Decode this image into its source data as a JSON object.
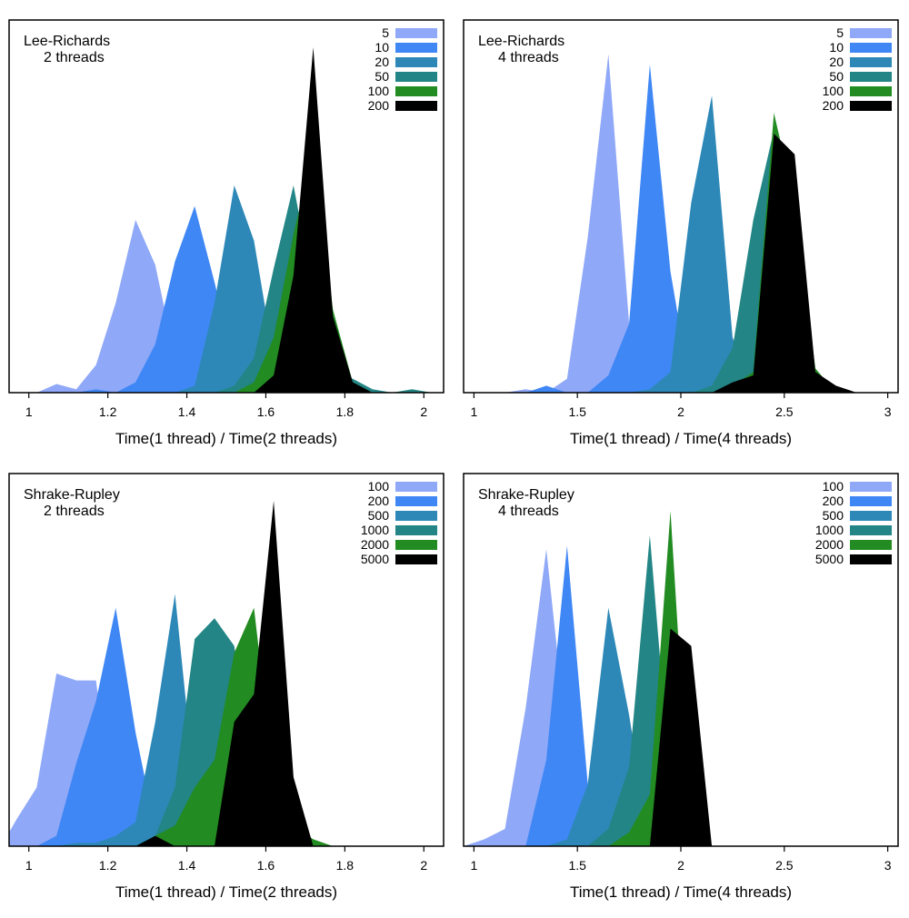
{
  "chart_data": [
    {
      "type": "area",
      "title_line1": "Lee-Richards",
      "title_line2": "2 threads",
      "xlabel": "Time(1 thread) / Time(2 threads)",
      "ylabel": "",
      "xlim": [
        0.95,
        2.05
      ],
      "ylim": [
        0,
        1.0
      ],
      "x_ticks": [
        1,
        1.2,
        1.4,
        1.6,
        1.8,
        2
      ],
      "x_tick_labels": [
        "1",
        "1.2",
        "1.4",
        "1.6",
        "1.8",
        "2"
      ],
      "y_axis_shown": false,
      "legend": "top-right",
      "series": [
        {
          "name": "5",
          "color": "#8fa8f8",
          "x": [
            1.0,
            1.02,
            1.07,
            1.12,
            1.17,
            1.22,
            1.27,
            1.32,
            1.37,
            1.42,
            1.47,
            1.52
          ],
          "y": [
            0,
            0,
            0.025,
            0.01,
            0.08,
            0.26,
            0.5,
            0.37,
            0.1,
            0.02,
            0.005,
            0
          ]
        },
        {
          "name": "10",
          "color": "#3f87f5",
          "x": [
            1.12,
            1.17,
            1.22,
            1.27,
            1.32,
            1.37,
            1.42,
            1.47,
            1.52,
            1.57,
            1.62
          ],
          "y": [
            0,
            0.01,
            0.0,
            0.03,
            0.14,
            0.38,
            0.54,
            0.32,
            0.08,
            0.01,
            0
          ]
        },
        {
          "name": "20",
          "color": "#2d88b8",
          "x": [
            1.32,
            1.37,
            1.42,
            1.47,
            1.52,
            1.57,
            1.62,
            1.67,
            1.72,
            1.77
          ],
          "y": [
            0,
            0.0,
            0.02,
            0.26,
            0.6,
            0.44,
            0.1,
            0.02,
            0.0,
            0
          ]
        },
        {
          "name": "50",
          "color": "#238585",
          "x": [
            1.42,
            1.47,
            1.52,
            1.57,
            1.62,
            1.67,
            1.72,
            1.77,
            1.82,
            1.87,
            1.92,
            1.97,
            2.02
          ],
          "y": [
            0,
            0.0,
            0.02,
            0.1,
            0.36,
            0.6,
            0.3,
            0.06,
            0.04,
            0.01,
            0.0,
            0.01,
            0
          ]
        },
        {
          "name": "100",
          "color": "#228b22",
          "x": [
            1.52,
            1.57,
            1.62,
            1.67,
            1.72,
            1.77,
            1.82,
            1.87
          ],
          "y": [
            0,
            0.03,
            0.16,
            0.46,
            0.7,
            0.24,
            0.03,
            0
          ]
        },
        {
          "name": "200",
          "color": "#000000",
          "x": [
            1.57,
            1.62,
            1.67,
            1.72,
            1.77,
            1.82,
            1.87
          ],
          "y": [
            0,
            0.05,
            0.34,
            1.0,
            0.22,
            0.03,
            0
          ]
        }
      ]
    },
    {
      "type": "area",
      "title_line1": "Lee-Richards",
      "title_line2": "4 threads",
      "xlabel": "Time(1 thread) / Time(4 threads)",
      "ylabel": "",
      "xlim": [
        0.95,
        3.05
      ],
      "ylim": [
        0,
        1.0
      ],
      "x_ticks": [
        1,
        1.5,
        2,
        2.5,
        3
      ],
      "x_tick_labels": [
        "1",
        "1.5",
        "2",
        "2.5",
        "3"
      ],
      "y_axis_shown": false,
      "legend": "top-right",
      "series": [
        {
          "name": "5",
          "color": "#8fa8f8",
          "x": [
            1.15,
            1.25,
            1.35,
            1.45,
            1.55,
            1.65,
            1.75,
            1.85
          ],
          "y": [
            0,
            0.01,
            0.0,
            0.04,
            0.45,
            0.98,
            0.2,
            0
          ]
        },
        {
          "name": "10",
          "color": "#3f87f5",
          "x": [
            1.25,
            1.35,
            1.45,
            1.55,
            1.65,
            1.75,
            1.85,
            1.95,
            2.05
          ],
          "y": [
            0,
            0.02,
            0.0,
            0.0,
            0.05,
            0.2,
            0.95,
            0.35,
            0
          ]
        },
        {
          "name": "20",
          "color": "#2d88b8",
          "x": [
            1.75,
            1.85,
            1.95,
            2.05,
            2.15,
            2.25,
            2.35
          ],
          "y": [
            0,
            0.01,
            0.06,
            0.55,
            0.86,
            0.16,
            0
          ]
        },
        {
          "name": "50",
          "color": "#238585",
          "x": [
            2.05,
            2.15,
            2.25,
            2.35,
            2.45,
            2.55,
            2.65
          ],
          "y": [
            0,
            0.02,
            0.13,
            0.5,
            0.76,
            0.2,
            0
          ]
        },
        {
          "name": "100",
          "color": "#228b22",
          "x": [
            2.15,
            2.25,
            2.35,
            2.45,
            2.55,
            2.65,
            2.75
          ],
          "y": [
            0,
            0.02,
            0.06,
            0.81,
            0.55,
            0.07,
            0
          ]
        },
        {
          "name": "200",
          "color": "#000000",
          "x": [
            2.15,
            2.25,
            2.35,
            2.45,
            2.55,
            2.65,
            2.75,
            2.85
          ],
          "y": [
            0,
            0.03,
            0.05,
            0.75,
            0.69,
            0.06,
            0.02,
            0
          ]
        }
      ]
    },
    {
      "type": "area",
      "title_line1": "Shrake-Rupley",
      "title_line2": "2 threads",
      "xlabel": "Time(1 thread) / Time(2 threads)",
      "ylabel": "",
      "xlim": [
        0.95,
        2.05
      ],
      "ylim": [
        0,
        1.0
      ],
      "x_ticks": [
        1,
        1.2,
        1.4,
        1.6,
        1.8,
        2
      ],
      "x_tick_labels": [
        "1",
        "1.2",
        "1.4",
        "1.6",
        "1.8",
        "2"
      ],
      "y_axis_shown": false,
      "legend": "top-right",
      "series": [
        {
          "name": "100",
          "color": "#8fa8f8",
          "x": [
            0.95,
            0.97,
            1.02,
            1.07,
            1.12,
            1.17,
            1.22,
            1.27
          ],
          "y": [
            0.04,
            0.08,
            0.17,
            0.5,
            0.48,
            0.48,
            0.05,
            0
          ]
        },
        {
          "name": "200",
          "color": "#3f87f5",
          "x": [
            1.02,
            1.07,
            1.12,
            1.17,
            1.22,
            1.27,
            1.32,
            1.37
          ],
          "y": [
            0,
            0.03,
            0.24,
            0.42,
            0.69,
            0.33,
            0.05,
            0
          ]
        },
        {
          "name": "500",
          "color": "#2d88b8",
          "x": [
            1.07,
            1.12,
            1.17,
            1.22,
            1.27,
            1.32,
            1.37,
            1.42,
            1.47
          ],
          "y": [
            0,
            0.01,
            0.01,
            0.03,
            0.07,
            0.36,
            0.73,
            0.17,
            0
          ]
        },
        {
          "name": "1000",
          "color": "#238585",
          "x": [
            1.27,
            1.32,
            1.37,
            1.42,
            1.47,
            1.52,
            1.57,
            1.62
          ],
          "y": [
            0,
            0.03,
            0.17,
            0.6,
            0.66,
            0.58,
            0.16,
            0
          ]
        },
        {
          "name": "2000",
          "color": "#228b22",
          "x": [
            1.27,
            1.32,
            1.37,
            1.42,
            1.47,
            1.52,
            1.57,
            1.62,
            1.67,
            1.72,
            1.77
          ],
          "y": [
            0,
            0.03,
            0.06,
            0.17,
            0.25,
            0.56,
            0.69,
            0.2,
            0.06,
            0.02,
            0
          ]
        },
        {
          "name": "5000",
          "color": "#000000",
          "x": [
            1.27,
            1.32,
            1.37,
            1.42,
            1.47,
            1.52,
            1.57,
            1.62,
            1.67,
            1.72
          ],
          "y": [
            0,
            0.03,
            0.0,
            0.0,
            0.0,
            0.36,
            0.44,
            1.0,
            0.2,
            0
          ]
        }
      ]
    },
    {
      "type": "area",
      "title_line1": "Shrake-Rupley",
      "title_line2": "4 threads",
      "xlabel": "Time(1 thread) / Time(4 threads)",
      "ylabel": "",
      "xlim": [
        0.95,
        3.05
      ],
      "ylim": [
        0,
        1.0
      ],
      "x_ticks": [
        1,
        1.5,
        2,
        2.5,
        3
      ],
      "x_tick_labels": [
        "1",
        "1.5",
        "2",
        "2.5",
        "3"
      ],
      "y_axis_shown": false,
      "legend": "top-right",
      "series": [
        {
          "name": "100",
          "color": "#8fa8f8",
          "x": [
            0.95,
            1.05,
            1.15,
            1.25,
            1.35,
            1.45,
            1.55
          ],
          "y": [
            0,
            0.02,
            0.05,
            0.4,
            0.86,
            0.3,
            0
          ]
        },
        {
          "name": "200",
          "color": "#3f87f5",
          "x": [
            1.15,
            1.25,
            1.35,
            1.45,
            1.55,
            1.65
          ],
          "y": [
            0,
            0.0,
            0.25,
            0.87,
            0.18,
            0
          ]
        },
        {
          "name": "500",
          "color": "#2d88b8",
          "x": [
            1.35,
            1.45,
            1.55,
            1.65,
            1.75,
            1.85
          ],
          "y": [
            0,
            0.02,
            0.18,
            0.69,
            0.38,
            0
          ]
        },
        {
          "name": "1000",
          "color": "#238585",
          "x": [
            1.55,
            1.65,
            1.75,
            1.85,
            1.95,
            2.05
          ],
          "y": [
            0,
            0.05,
            0.23,
            0.9,
            0.18,
            0
          ]
        },
        {
          "name": "2000",
          "color": "#228b22",
          "x": [
            1.65,
            1.75,
            1.85,
            1.95,
            2.05
          ],
          "y": [
            0,
            0.04,
            0.15,
            0.97,
            0
          ]
        },
        {
          "name": "5000",
          "color": "#000000",
          "x": [
            1.75,
            1.85,
            1.95,
            2.05,
            2.15
          ],
          "y": [
            0,
            0.0,
            0.63,
            0.58,
            0
          ]
        }
      ]
    }
  ]
}
